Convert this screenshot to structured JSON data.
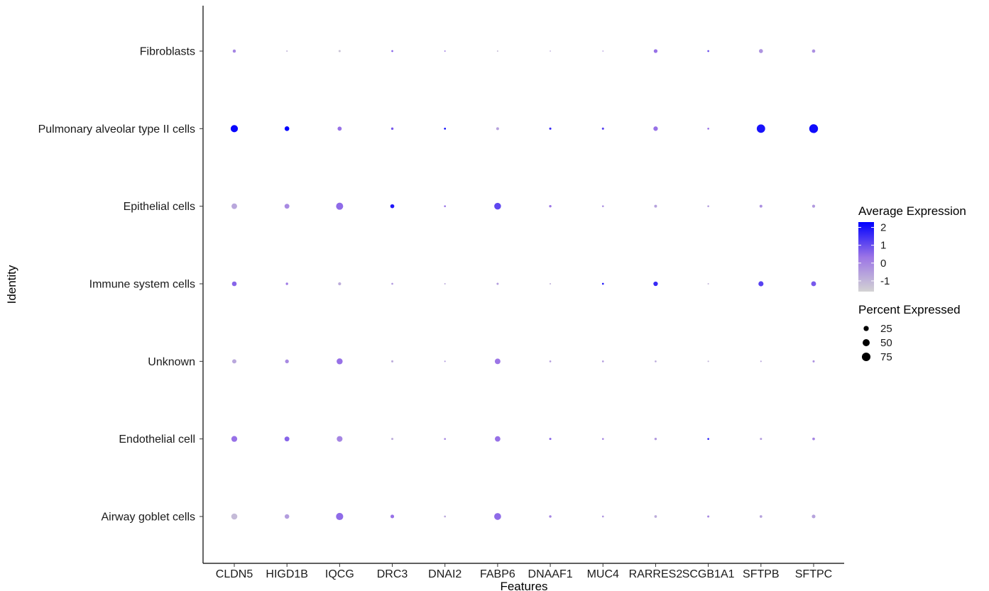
{
  "chart_data": {
    "type": "dotplot",
    "xlabel": "Features",
    "ylabel": "Identity",
    "features": [
      "CLDN5",
      "HIGD1B",
      "IQCG",
      "DRC3",
      "DNAI2",
      "FABP6",
      "DNAAF1",
      "MUC4",
      "RARRES2",
      "SCGB1A1",
      "SFTPB",
      "SFTPC"
    ],
    "identities": [
      "Fibroblasts",
      "Pulmonary alveolar type II cells",
      "Epithelial cells",
      "Immune system cells",
      "Unknown",
      "Endothelial cell",
      "Airway goblet cells"
    ],
    "percent_expressed": [
      [
        8,
        1,
        3,
        2,
        1,
        1,
        0.5,
        0.5,
        12,
        2,
        14,
        9
      ],
      [
        52,
        20,
        15,
        4,
        2,
        6,
        3,
        3,
        18,
        2,
        72,
        80
      ],
      [
        30,
        22,
        50,
        14,
        2,
        45,
        4,
        2,
        6,
        2,
        6,
        7
      ],
      [
        20,
        4,
        7,
        2,
        1,
        3,
        1,
        2,
        18,
        1,
        24,
        22
      ],
      [
        16,
        12,
        35,
        3,
        1,
        30,
        2,
        2,
        2,
        1,
        1,
        3
      ],
      [
        33,
        22,
        32,
        3,
        2,
        29,
        3,
        2,
        4,
        2,
        3,
        5
      ],
      [
        36,
        19,
        52,
        11,
        2,
        47,
        4,
        2,
        5,
        3,
        5,
        11
      ]
    ],
    "average_expression": [
      [
        0.0,
        -1.0,
        -1.3,
        0.6,
        0.0,
        -1.2,
        -0.8,
        -0.5,
        0.4,
        0.9,
        -0.3,
        -0.2
      ],
      [
        2.2,
        2.3,
        0.4,
        0.8,
        2.2,
        -0.6,
        1.6,
        1.2,
        0.4,
        0.4,
        2.0,
        2.1
      ],
      [
        -0.7,
        -0.1,
        0.5,
        1.9,
        0.4,
        1.1,
        0.3,
        -0.2,
        -0.6,
        -0.5,
        -0.2,
        -0.4
      ],
      [
        0.6,
        0.2,
        -0.8,
        -0.4,
        -0.8,
        -0.5,
        -0.9,
        1.9,
        1.6,
        -1.0,
        1.2,
        0.8
      ],
      [
        -0.7,
        -0.1,
        0.4,
        -0.8,
        -0.5,
        0.3,
        -0.5,
        -0.5,
        -0.8,
        -1.0,
        -0.7,
        -0.3
      ],
      [
        0.4,
        0.6,
        0.0,
        -0.8,
        0.0,
        0.4,
        0.6,
        0.0,
        -0.4,
        1.8,
        -0.5,
        0.0
      ],
      [
        -1.1,
        -0.5,
        0.5,
        0.4,
        -0.7,
        0.5,
        0.0,
        -0.3,
        -0.8,
        -0.1,
        -0.6,
        -0.6
      ]
    ],
    "legend_color": {
      "title": "Average Expression",
      "ticks": [
        "2",
        "1",
        "0",
        "-1"
      ],
      "range": [
        -1.6,
        2.3
      ],
      "low_color": "#d3d3d3",
      "high_color": "#0000ff"
    },
    "legend_size": {
      "title": "Percent Expressed",
      "entries": [
        {
          "label": "25",
          "value": 25
        },
        {
          "label": "50",
          "value": 50
        },
        {
          "label": "75",
          "value": 75
        }
      ]
    },
    "colors": {
      "axis": "#000000",
      "text": "#1a1a1a"
    }
  }
}
